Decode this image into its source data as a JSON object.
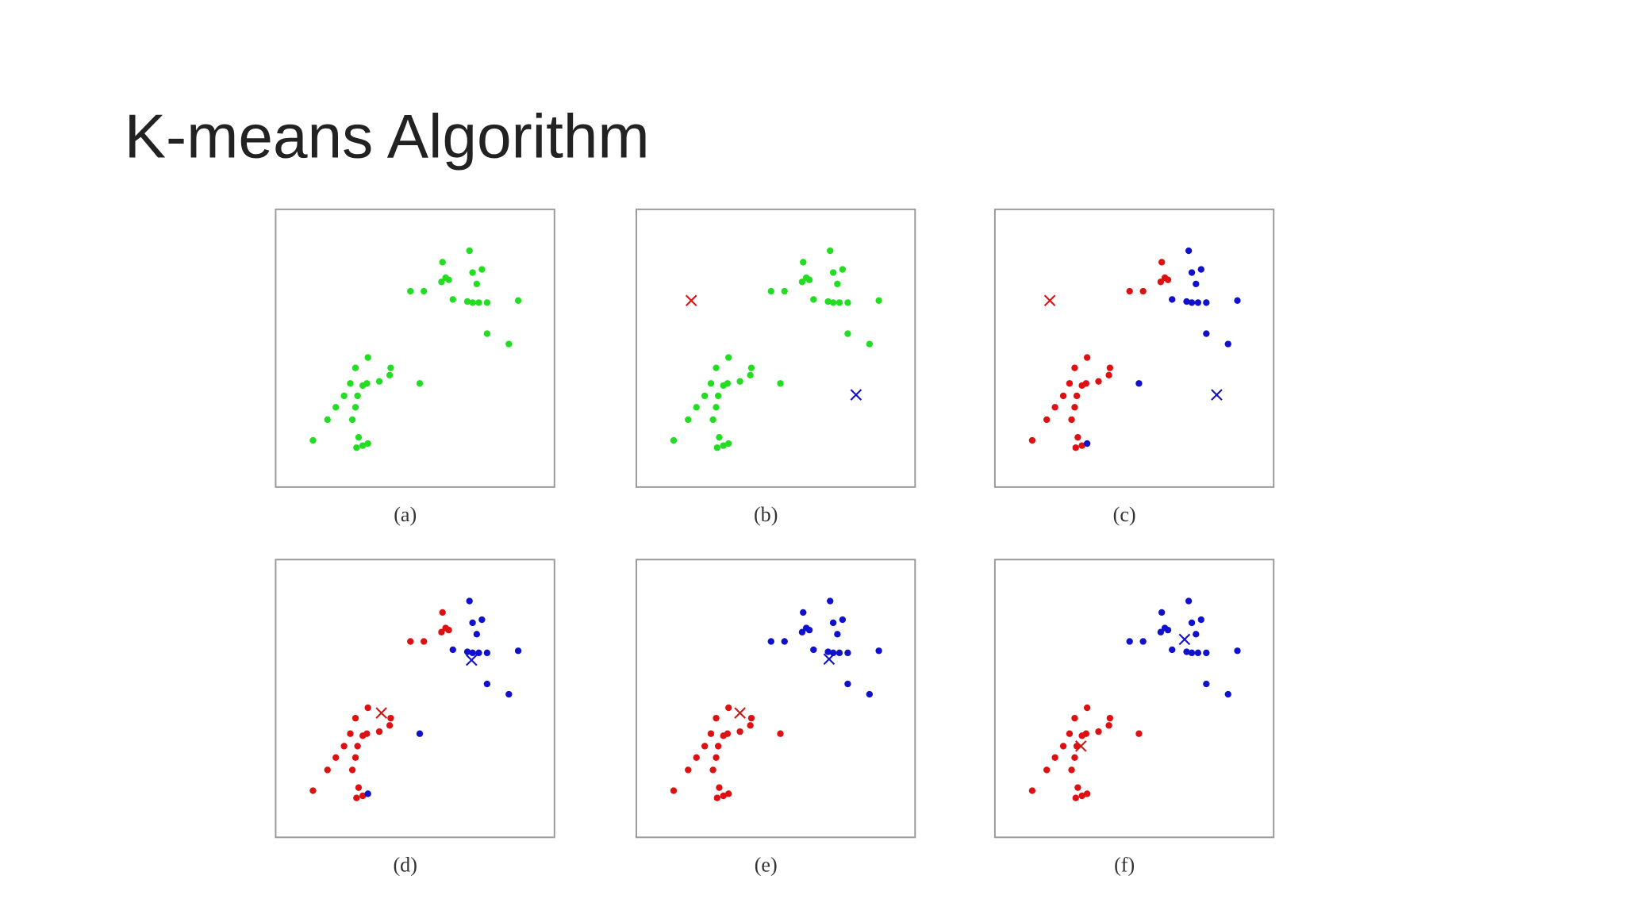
{
  "slide": {
    "title": "K-means Algorithm",
    "captions": [
      "(a)",
      "(b)",
      "(c)",
      "(d)",
      "(e)",
      "(f)"
    ]
  }
}
